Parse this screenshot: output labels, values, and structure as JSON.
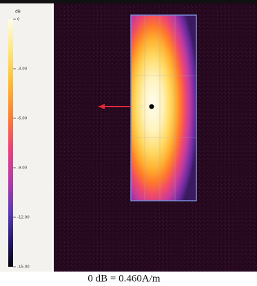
{
  "chart_data": {
    "type": "colormap",
    "colorbar_label": "dB",
    "colorbar_lim": [
      -15,
      0
    ],
    "colorbar_ticks": [
      0,
      {
        "value": -3,
        "label": "-3.00"
      },
      {
        "value": -6,
        "label": "-6.00"
      },
      {
        "value": -9,
        "label": "-9.00"
      },
      {
        "value": -12,
        "label": "-12.00"
      },
      {
        "value": -15,
        "label": "-15.00"
      }
    ],
    "caption": "0 dB = 0.460A/m"
  }
}
